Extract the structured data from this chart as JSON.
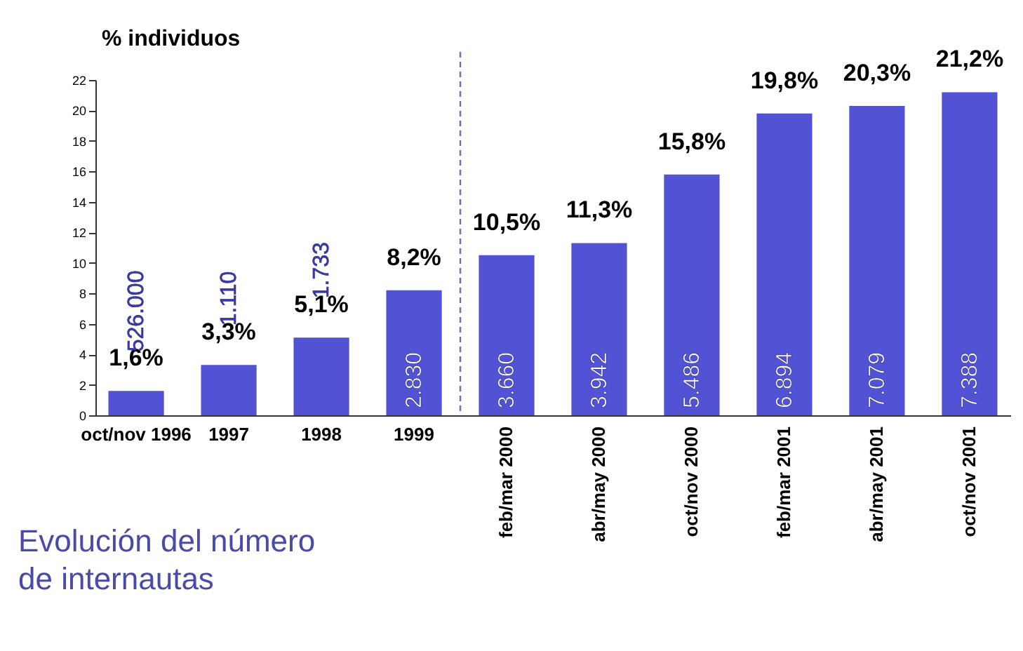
{
  "chart_data": {
    "type": "bar",
    "title": "Evolución del número de internautas",
    "ylabel": "% individuos",
    "categories": [
      "oct/nov 1996",
      "1997",
      "1998",
      "1999",
      "feb/mar 2000",
      "abr/may 2000",
      "oct/nov 2000",
      "feb/mar 2001",
      "abr/may 2001",
      "oct/nov 2001"
    ],
    "values": [
      1.6,
      3.3,
      5.1,
      8.2,
      10.5,
      11.3,
      15.8,
      19.8,
      20.3,
      21.2
    ],
    "value_labels": [
      "1,6%",
      "3,3%",
      "5,1%",
      "8,2%",
      "10,5%",
      "11,3%",
      "15,8%",
      "19,8%",
      "20,3%",
      "21,2%"
    ],
    "color": "#5252d4",
    "ylim": [
      0,
      22
    ],
    "yticks": [
      0,
      2,
      4,
      6,
      8,
      10,
      12,
      14,
      16,
      18,
      20,
      22
    ],
    "grid": false,
    "ref_lines": [
      {
        "axis": "x",
        "value": "feb/mar 2000",
        "line_style": "dashed",
        "color": "#6a6ac8"
      }
    ],
    "annotations": [
      "526.000",
      "1.110",
      "1.733",
      "2.830",
      "3.660",
      "3.942",
      "5.486",
      "6.894",
      "7.079",
      "7.388"
    ]
  }
}
